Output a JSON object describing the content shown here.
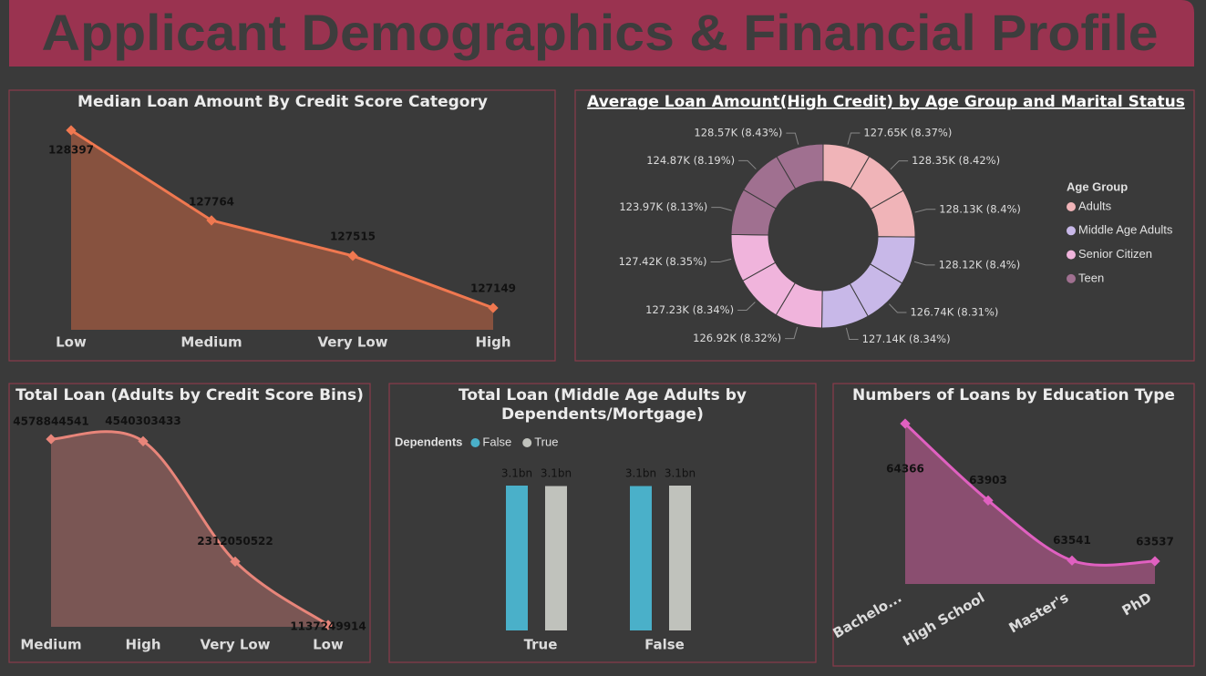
{
  "title": "Applicant Demographics & Financial Profile",
  "chart_data": [
    {
      "type": "area",
      "title": "Median Loan Amount By Credit Score Category",
      "categories": [
        "Low",
        "Medium",
        "Very Low",
        "High"
      ],
      "values": [
        128397,
        127764,
        127515,
        127149
      ],
      "color": "#f07850",
      "fill": "#87523f",
      "smooth": false
    },
    {
      "type": "donut",
      "title": "Average Loan Amount(High Credit) by Age Group and Marital Status",
      "legend_title": "Age Group",
      "series": [
        {
          "name": "Adults",
          "color": "#f0b4b8",
          "values": [
            127650,
            128350,
            128130
          ],
          "value_labels": [
            "127.65K (8.37%)",
            "128.35K (8.42%)",
            "128.13K (8.4%)"
          ]
        },
        {
          "name": "Middle Age Adults",
          "color": "#c8b8e8",
          "values": [
            128120,
            126740,
            127140
          ],
          "value_labels": [
            "128.12K (8.4%)",
            "126.74K (8.31%)",
            "127.14K (8.34%)"
          ]
        },
        {
          "name": "Senior Citizen",
          "color": "#f0b4dc",
          "values": [
            126920,
            127230,
            127420
          ],
          "value_labels": [
            "126.92K (8.32%)",
            "127.23K (8.34%)",
            "127.42K (8.35%)"
          ]
        },
        {
          "name": "Teen",
          "color": "#a07090",
          "values": [
            123970,
            124870,
            128570
          ],
          "value_labels": [
            "123.97K (8.13%)",
            "124.87K (8.19%)",
            "128.57K (8.43%)"
          ]
        }
      ]
    },
    {
      "type": "area",
      "title": "Total Loan (Adults by Credit Score Bins)",
      "categories": [
        "Medium",
        "High",
        "Very Low",
        "Low"
      ],
      "values": [
        4578844541,
        4540303433,
        2312050522,
        1137249914
      ],
      "color": "#e8857a",
      "fill": "#7a5654",
      "smooth": true
    },
    {
      "type": "bar",
      "title": "Total Loan (Middle Age Adults by Dependents/Mortgage)",
      "legend_title": "Dependents",
      "categories": [
        "True",
        "False"
      ],
      "series": [
        {
          "name": "False",
          "color": "#4ab0c9",
          "values": [
            3110000000,
            3100000000
          ],
          "value_labels": [
            "3.1bn",
            "3.1bn"
          ]
        },
        {
          "name": "True",
          "color": "#c0c2bc",
          "values": [
            3100000000,
            3110000000
          ],
          "value_labels": [
            "3.1bn",
            "3.1bn"
          ]
        }
      ]
    },
    {
      "type": "area",
      "title": "Numbers of Loans by Education Type",
      "categories": [
        "Bachelo...",
        "High School",
        "Master's",
        "PhD"
      ],
      "values": [
        64366,
        63903,
        63541,
        63537
      ],
      "color": "#e060c0",
      "fill": "#8a4e70",
      "smooth": true
    }
  ]
}
